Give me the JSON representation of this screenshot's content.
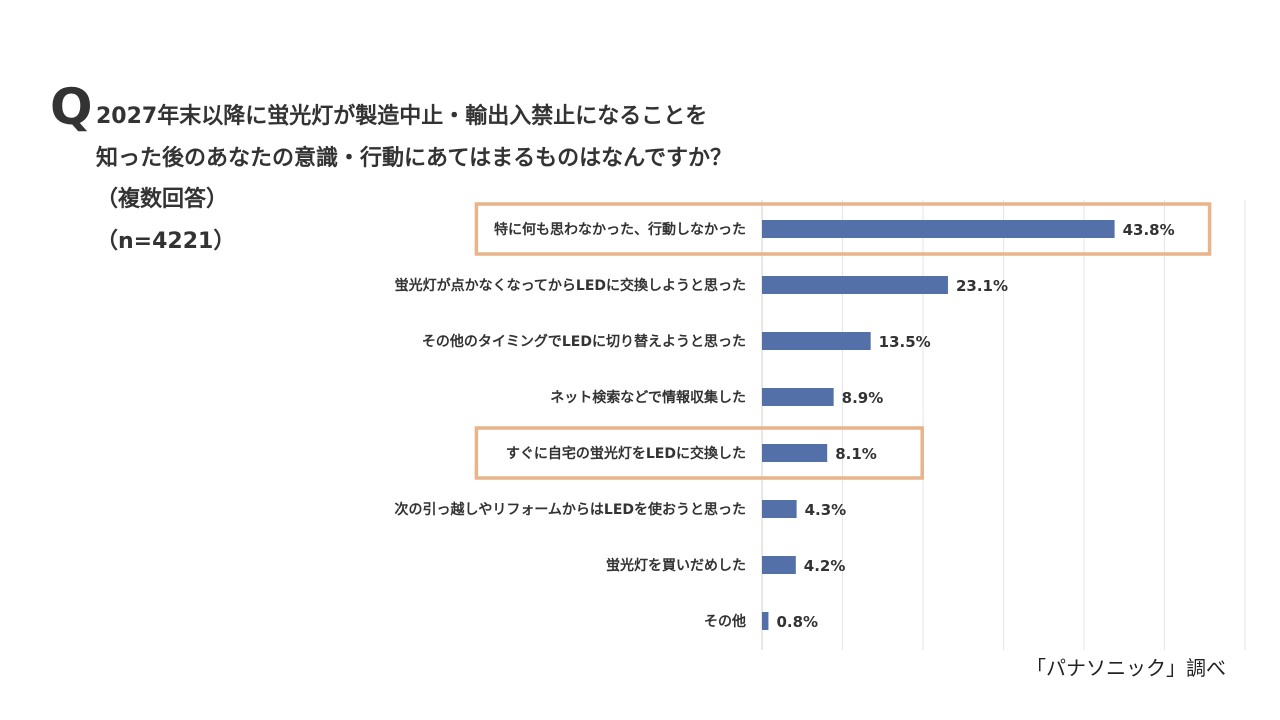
{
  "question": {
    "marker": "Q",
    "lines": [
      "2027年末以降に蛍光灯が製造中止・輸出入禁止になることを",
      "知った後のあなたの意識・行動にあてはまるものはなんですか？",
      "（複数回答）",
      "（n=4221）"
    ]
  },
  "source": "「パナソニック」調べ",
  "colors": {
    "bar": "#5470a8",
    "highlight": "#e8b48a",
    "grid": "#e6e6e6",
    "text": "#333333"
  },
  "chart_data": {
    "type": "bar",
    "orientation": "horizontal",
    "categories": [
      "特に何も思わなかった、行動しなかった",
      "蛍光灯が点かなくなってからLEDに交換しようと思った",
      "その他のタイミングでLEDに切り替えようと思った",
      "ネット検索などで情報収集した",
      "すぐに自宅の蛍光灯をLEDに交換した",
      "次の引っ越しやリフォームからはLEDを使おうと思った",
      "蛍光灯を買いだめした",
      "その他"
    ],
    "values": [
      43.8,
      23.1,
      13.5,
      8.9,
      8.1,
      4.3,
      4.2,
      0.8
    ],
    "value_labels": [
      "43.8%",
      "23.1%",
      "13.5%",
      "8.9%",
      "8.1%",
      "4.3%",
      "4.2%",
      "0.8%"
    ],
    "highlighted": [
      0,
      4
    ],
    "xlim": [
      0,
      60
    ],
    "grid": true
  }
}
